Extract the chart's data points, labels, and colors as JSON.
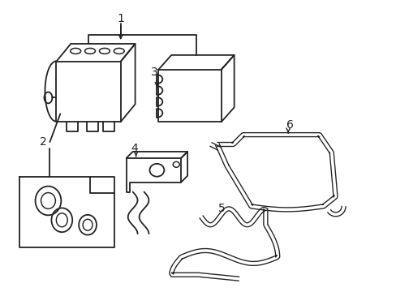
{
  "background_color": "#ffffff",
  "line_color": "#222222",
  "line_width": 1.3,
  "label_fontsize": 10,
  "figsize": [
    4.89,
    3.6
  ],
  "dpi": 100
}
